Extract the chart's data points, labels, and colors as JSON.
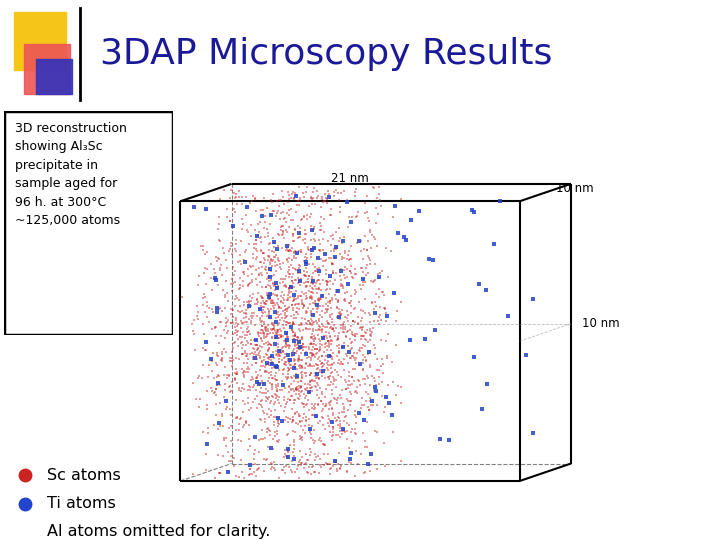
{
  "title": "3DAP Microscopy Results",
  "title_color": "#1a1a99",
  "title_fontsize": 26,
  "background_color": "#ffffff",
  "description_text": "3D reconstruction\nshowing Al₃Sc\nprecipitate in\nsample aged for\n96 h. at 300°C\n~125,000 atoms",
  "label_21nm": "21 nm",
  "label_10nm_top": "10 nm",
  "label_10nm_right": "10 nm",
  "sc_color": "#cc2222",
  "ti_color": "#2244cc",
  "legend_sc": "Sc atoms",
  "legend_ti": "Ti atoms",
  "legend_al": "Al atoms omitted for clarity.",
  "n_sc": 2500,
  "n_ti_cluster": 100,
  "n_ti_scatter": 55,
  "seed_sc": 42,
  "seed_ti": 99,
  "header_sq1_color": "#f5c518",
  "header_sq2_color": "#ee5555",
  "header_sq3_color": "#3333bb"
}
